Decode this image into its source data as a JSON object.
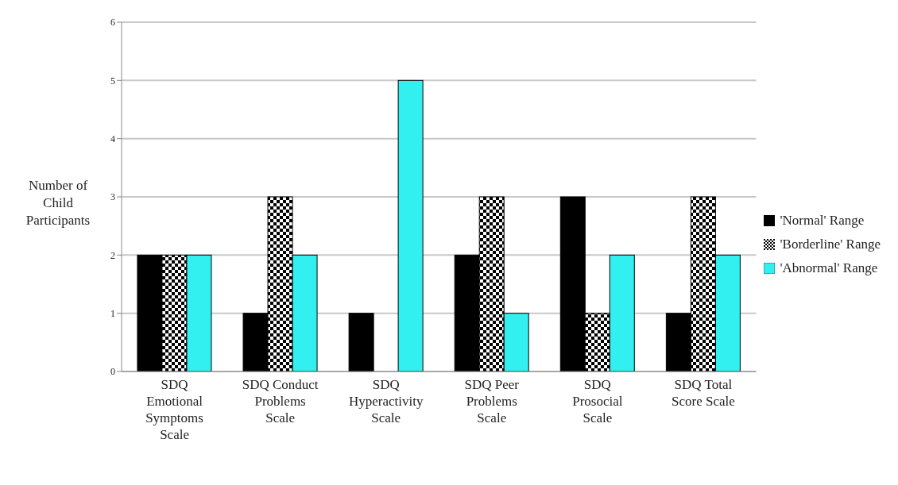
{
  "chart_data": {
    "type": "bar",
    "ylabel": "Number of Child Participants",
    "categories": [
      "SDQ Emotional Symptoms Scale",
      "SDQ Conduct Problems Scale",
      "SDQ Hyperactivity Scale",
      "SDQ Peer Problems Scale",
      "SDQ Prosocial Scale",
      "SDQ Total Score Scale"
    ],
    "series": [
      {
        "name": "'Normal' Range",
        "color": "#000000",
        "values": [
          2,
          1,
          1,
          2,
          3,
          1
        ]
      },
      {
        "name": "'Borderline' Range",
        "color": "#000000",
        "values": [
          2,
          3,
          0,
          3,
          1,
          3
        ]
      },
      {
        "name": "'Abnormal' Range",
        "color": "#33f0f0",
        "values": [
          2,
          2,
          5,
          1,
          2,
          2
        ]
      }
    ],
    "ylim": [
      0,
      6
    ],
    "yticks": [
      0,
      1,
      2,
      3,
      4,
      5,
      6
    ],
    "grid": "y",
    "legend": "right"
  }
}
